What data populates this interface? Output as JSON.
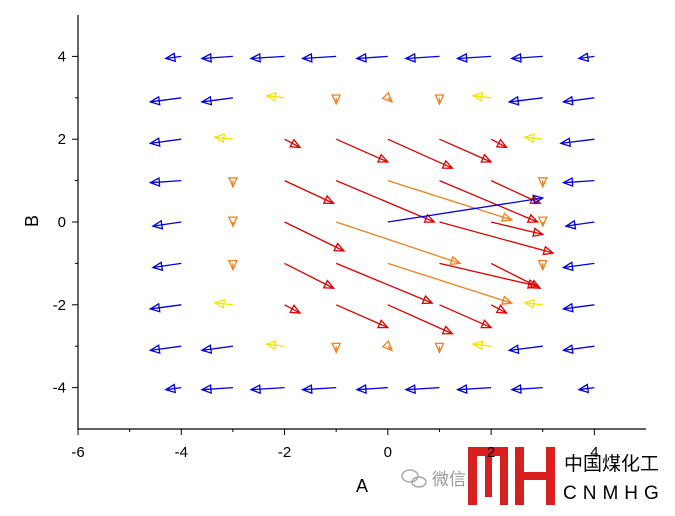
{
  "chart_data": {
    "type": "vector",
    "xlabel": "A",
    "ylabel": "B",
    "xlim": [
      -6,
      5
    ],
    "ylim": [
      -5,
      5
    ],
    "xticks": [
      -6,
      -4,
      -2,
      0,
      2,
      4
    ],
    "yticks": [
      -4,
      -2,
      0,
      2,
      4
    ],
    "x": [
      -4,
      -3,
      -2,
      -1,
      0,
      1,
      2,
      3,
      4,
      -4,
      -3,
      -2,
      -1,
      0,
      1,
      2,
      3,
      4,
      -4,
      -3,
      -2,
      -1,
      0,
      1,
      2,
      3,
      4,
      -4,
      -3,
      -2,
      -1,
      0,
      1,
      2,
      3,
      4,
      -4,
      -3,
      -2,
      -1,
      0,
      1,
      2,
      3,
      4,
      -4,
      -3,
      -2,
      -1,
      0,
      1,
      2,
      3,
      4,
      -4,
      -3,
      -2,
      -1,
      0,
      1,
      2,
      3,
      4,
      -4,
      -3,
      -2,
      -1,
      0,
      1,
      2,
      3,
      4,
      -4,
      -3,
      -2,
      -1,
      0,
      1,
      2,
      3,
      4
    ],
    "y": [
      4,
      4,
      4,
      4,
      4,
      4,
      4,
      4,
      4,
      3,
      3,
      3,
      3,
      3,
      3,
      3,
      3,
      3,
      2,
      2,
      2,
      2,
      2,
      2,
      2,
      2,
      2,
      1,
      1,
      1,
      1,
      1,
      1,
      1,
      1,
      1,
      0,
      0,
      0,
      0,
      0,
      0,
      0,
      0,
      0,
      -1,
      -1,
      -1,
      -1,
      -1,
      -1,
      -1,
      -1,
      -1,
      -2,
      -2,
      -2,
      -2,
      -2,
      -2,
      -2,
      -2,
      -2,
      -3,
      -3,
      -3,
      -3,
      -3,
      -3,
      -3,
      -3,
      -3,
      -4,
      -4,
      -4,
      -4,
      -4,
      -4,
      -4,
      -4,
      -4
    ],
    "u": [
      -0.3,
      -0.6,
      -0.65,
      -0.65,
      -0.6,
      -0.65,
      -0.65,
      -0.6,
      -0.3,
      -0.6,
      -0.6,
      -0.35,
      0,
      0.08,
      0,
      -0.35,
      -0.65,
      -0.6,
      -0.6,
      -0.35,
      0.3,
      1,
      1.25,
      1,
      0.3,
      -0.35,
      -0.65,
      -0.6,
      0,
      0.95,
      1.9,
      2.4,
      1.9,
      0.95,
      0,
      -0.6,
      -0.55,
      0,
      1.15,
      2.4,
      3,
      2.2,
      1,
      0,
      -0.55,
      -0.55,
      0,
      0.95,
      1.86,
      2.4,
      1.9,
      0.95,
      0,
      -0.6,
      -0.6,
      -0.35,
      0.3,
      1,
      1.25,
      1,
      0.3,
      -0.35,
      -0.6,
      -0.6,
      -0.6,
      -0.35,
      0,
      0.08,
      0,
      -0.35,
      -0.65,
      -0.6,
      -0.3,
      -0.6,
      -0.65,
      -0.65,
      -0.6,
      -0.65,
      -0.65,
      -0.6,
      -0.3
    ],
    "v": [
      -0.05,
      -0.05,
      -0.05,
      -0.05,
      -0.05,
      -0.05,
      -0.05,
      -0.05,
      -0.05,
      -0.1,
      -0.1,
      0.05,
      -0.15,
      -0.1,
      -0.15,
      0.05,
      -0.1,
      -0.1,
      -0.1,
      0.05,
      -0.2,
      -0.55,
      -0.7,
      -0.55,
      -0.2,
      0.05,
      -0.1,
      -0.05,
      -0.15,
      -0.55,
      -1,
      -0.95,
      -1,
      -0.55,
      -0.15,
      -0.05,
      -0.1,
      -0.1,
      -0.7,
      -1,
      0.58,
      -0.75,
      -0.3,
      -0.1,
      -0.1,
      -0.1,
      -0.15,
      -0.6,
      -0.96,
      -0.96,
      -0.55,
      -0.6,
      -0.15,
      -0.1,
      -0.1,
      0.05,
      -0.2,
      -0.55,
      -0.7,
      -0.55,
      -0.2,
      0.05,
      -0.1,
      -0.1,
      -0.1,
      0.05,
      -0.15,
      -0.1,
      -0.15,
      0.05,
      -0.1,
      -0.1,
      -0.05,
      -0.05,
      -0.05,
      -0.05,
      -0.05,
      -0.05,
      -0.05,
      -0.05,
      -0.05
    ],
    "colors": [
      "#0000dd",
      "#0000dd",
      "#0000dd",
      "#0000dd",
      "#0000dd",
      "#0000dd",
      "#0000dd",
      "#0000dd",
      "#0000dd",
      "#0000dd",
      "#0000dd",
      "#f2e600",
      "#f08020",
      "#f08020",
      "#f08020",
      "#f2e600",
      "#0000dd",
      "#0000dd",
      "#0000dd",
      "#f2e600",
      "#e00000",
      "#e00000",
      "#e00000",
      "#e00000",
      "#e00000",
      "#f2e600",
      "#0000dd",
      "#0000dd",
      "#f08020",
      "#e00000",
      "#e00000",
      "#f08020",
      "#e00000",
      "#e00000",
      "#f08020",
      "#0000dd",
      "#0000dd",
      "#f08020",
      "#e00000",
      "#f08020",
      "#0000dd",
      "#e00000",
      "#e00000",
      "#f08020",
      "#0000dd",
      "#0000dd",
      "#f08020",
      "#e00000",
      "#e00000",
      "#f08020",
      "#e00000",
      "#e00000",
      "#f08020",
      "#0000dd",
      "#0000dd",
      "#f2e600",
      "#e00000",
      "#e00000",
      "#e00000",
      "#e00000",
      "#e00000",
      "#f2e600",
      "#0000dd",
      "#0000dd",
      "#0000dd",
      "#f2e600",
      "#f08020",
      "#f08020",
      "#f08020",
      "#f2e600",
      "#0000dd",
      "#0000dd",
      "#0000dd",
      "#0000dd",
      "#0000dd",
      "#0000dd",
      "#0000dd",
      "#0000dd",
      "#0000dd",
      "#0000dd",
      "#0000dd"
    ]
  },
  "watermark": {
    "text": "微信",
    "logo_cn": "中国煤化工",
    "logo_en": "CNMHG"
  }
}
